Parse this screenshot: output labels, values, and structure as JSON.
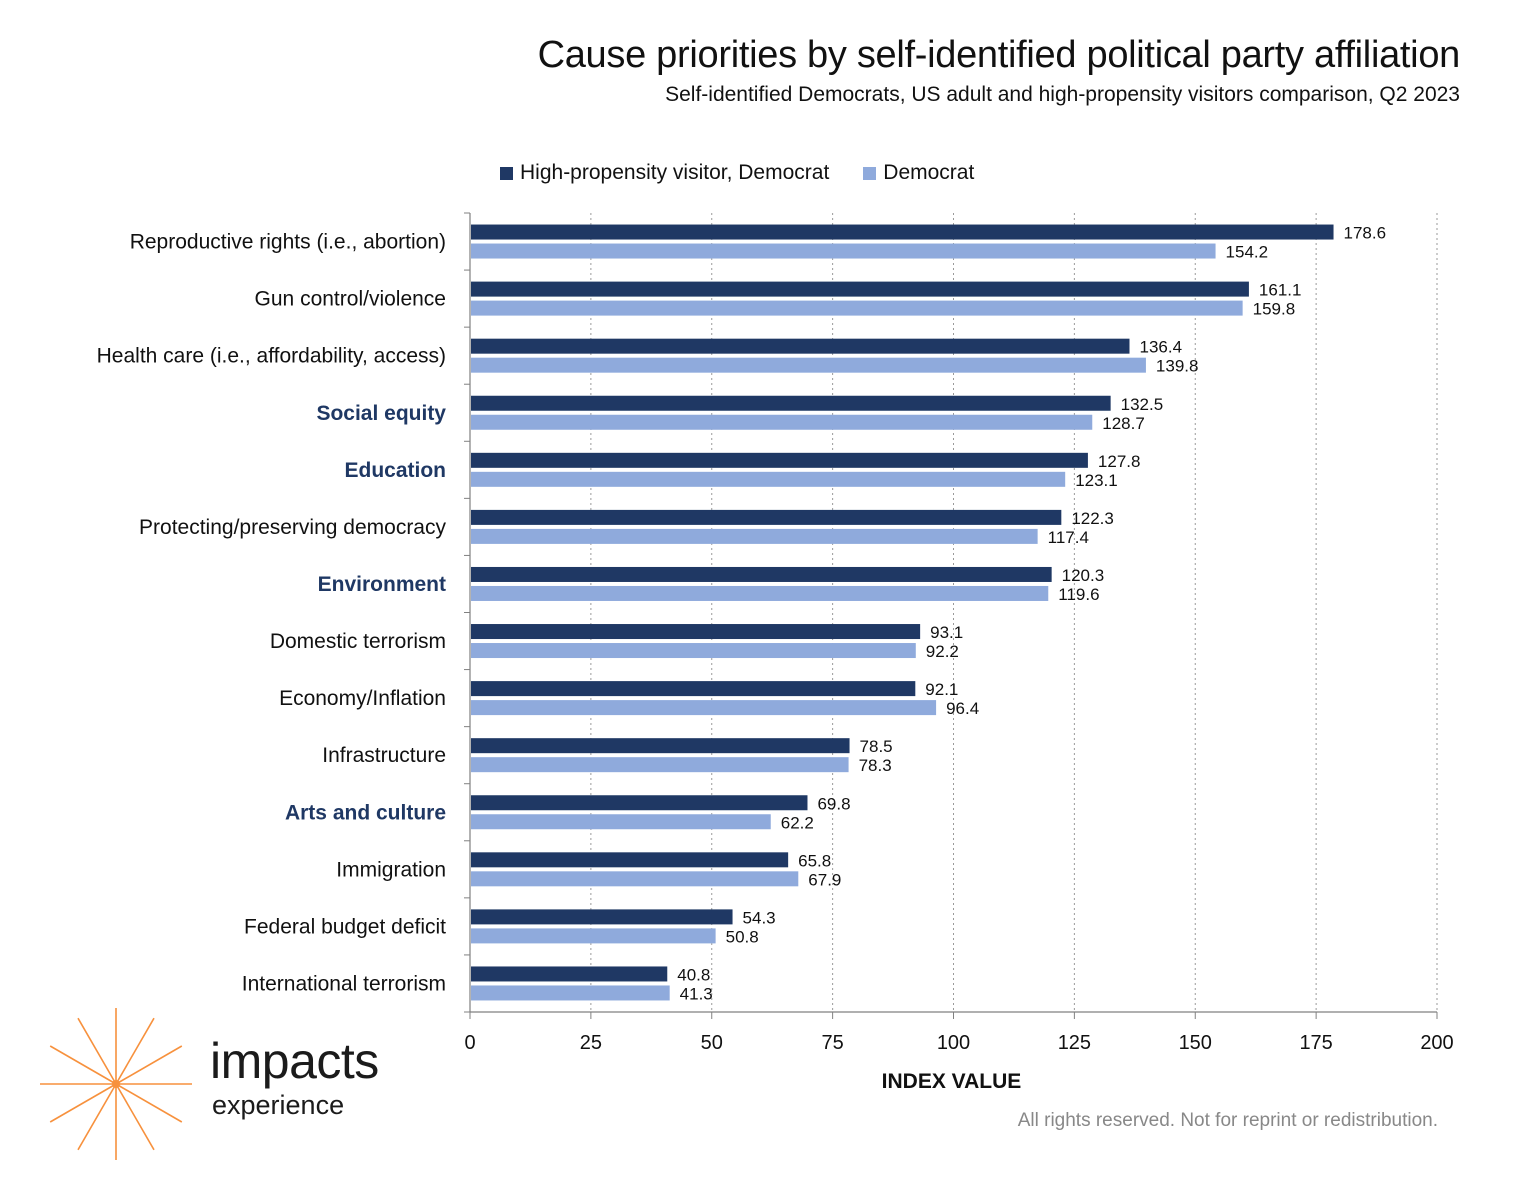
{
  "header": {
    "title": "Cause priorities by self-identified political party affiliation",
    "subtitle": "Self-identified Democrats, US adult and high-propensity visitors comparison, Q2 2023"
  },
  "colors": {
    "series_dark": "#1f3864",
    "series_light": "#8faadc",
    "highlight_label": "#1f3864",
    "logo_orange": "#f7913d"
  },
  "chart_data": {
    "type": "bar",
    "orientation": "horizontal",
    "categories": [
      "Reproductive rights (i.e., abortion)",
      "Gun control/violence",
      "Health care (i.e., affordability, access)",
      "Social equity",
      "Education",
      "Protecting/preserving democracy",
      "Environment",
      "Domestic terrorism",
      "Economy/Inflation",
      "Infrastructure",
      "Arts and culture",
      "Immigration",
      "Federal budget deficit",
      "International terrorism"
    ],
    "highlighted_categories": [
      "Social equity",
      "Education",
      "Environment",
      "Arts and culture"
    ],
    "series": [
      {
        "name": "High-propensity visitor, Democrat",
        "values": [
          178.6,
          161.1,
          136.4,
          132.5,
          127.8,
          122.3,
          120.3,
          93.1,
          92.1,
          78.5,
          69.8,
          65.8,
          54.3,
          40.8
        ]
      },
      {
        "name": "Democrat",
        "values": [
          154.2,
          159.8,
          139.8,
          128.7,
          123.1,
          117.4,
          119.6,
          92.2,
          96.4,
          78.3,
          62.2,
          67.9,
          50.8,
          41.3
        ]
      }
    ],
    "xlabel": "INDEX VALUE",
    "ylabel": "",
    "xlim": [
      0,
      200
    ],
    "xticks": [
      0,
      25,
      50,
      75,
      100,
      125,
      150,
      175,
      200
    ],
    "grid": "vertical dotted",
    "legend_position": "top"
  },
  "footer": {
    "note": "All rights reserved. Not for reprint or redistribution."
  },
  "logo": {
    "word": "impacts",
    "sub": "experience"
  }
}
